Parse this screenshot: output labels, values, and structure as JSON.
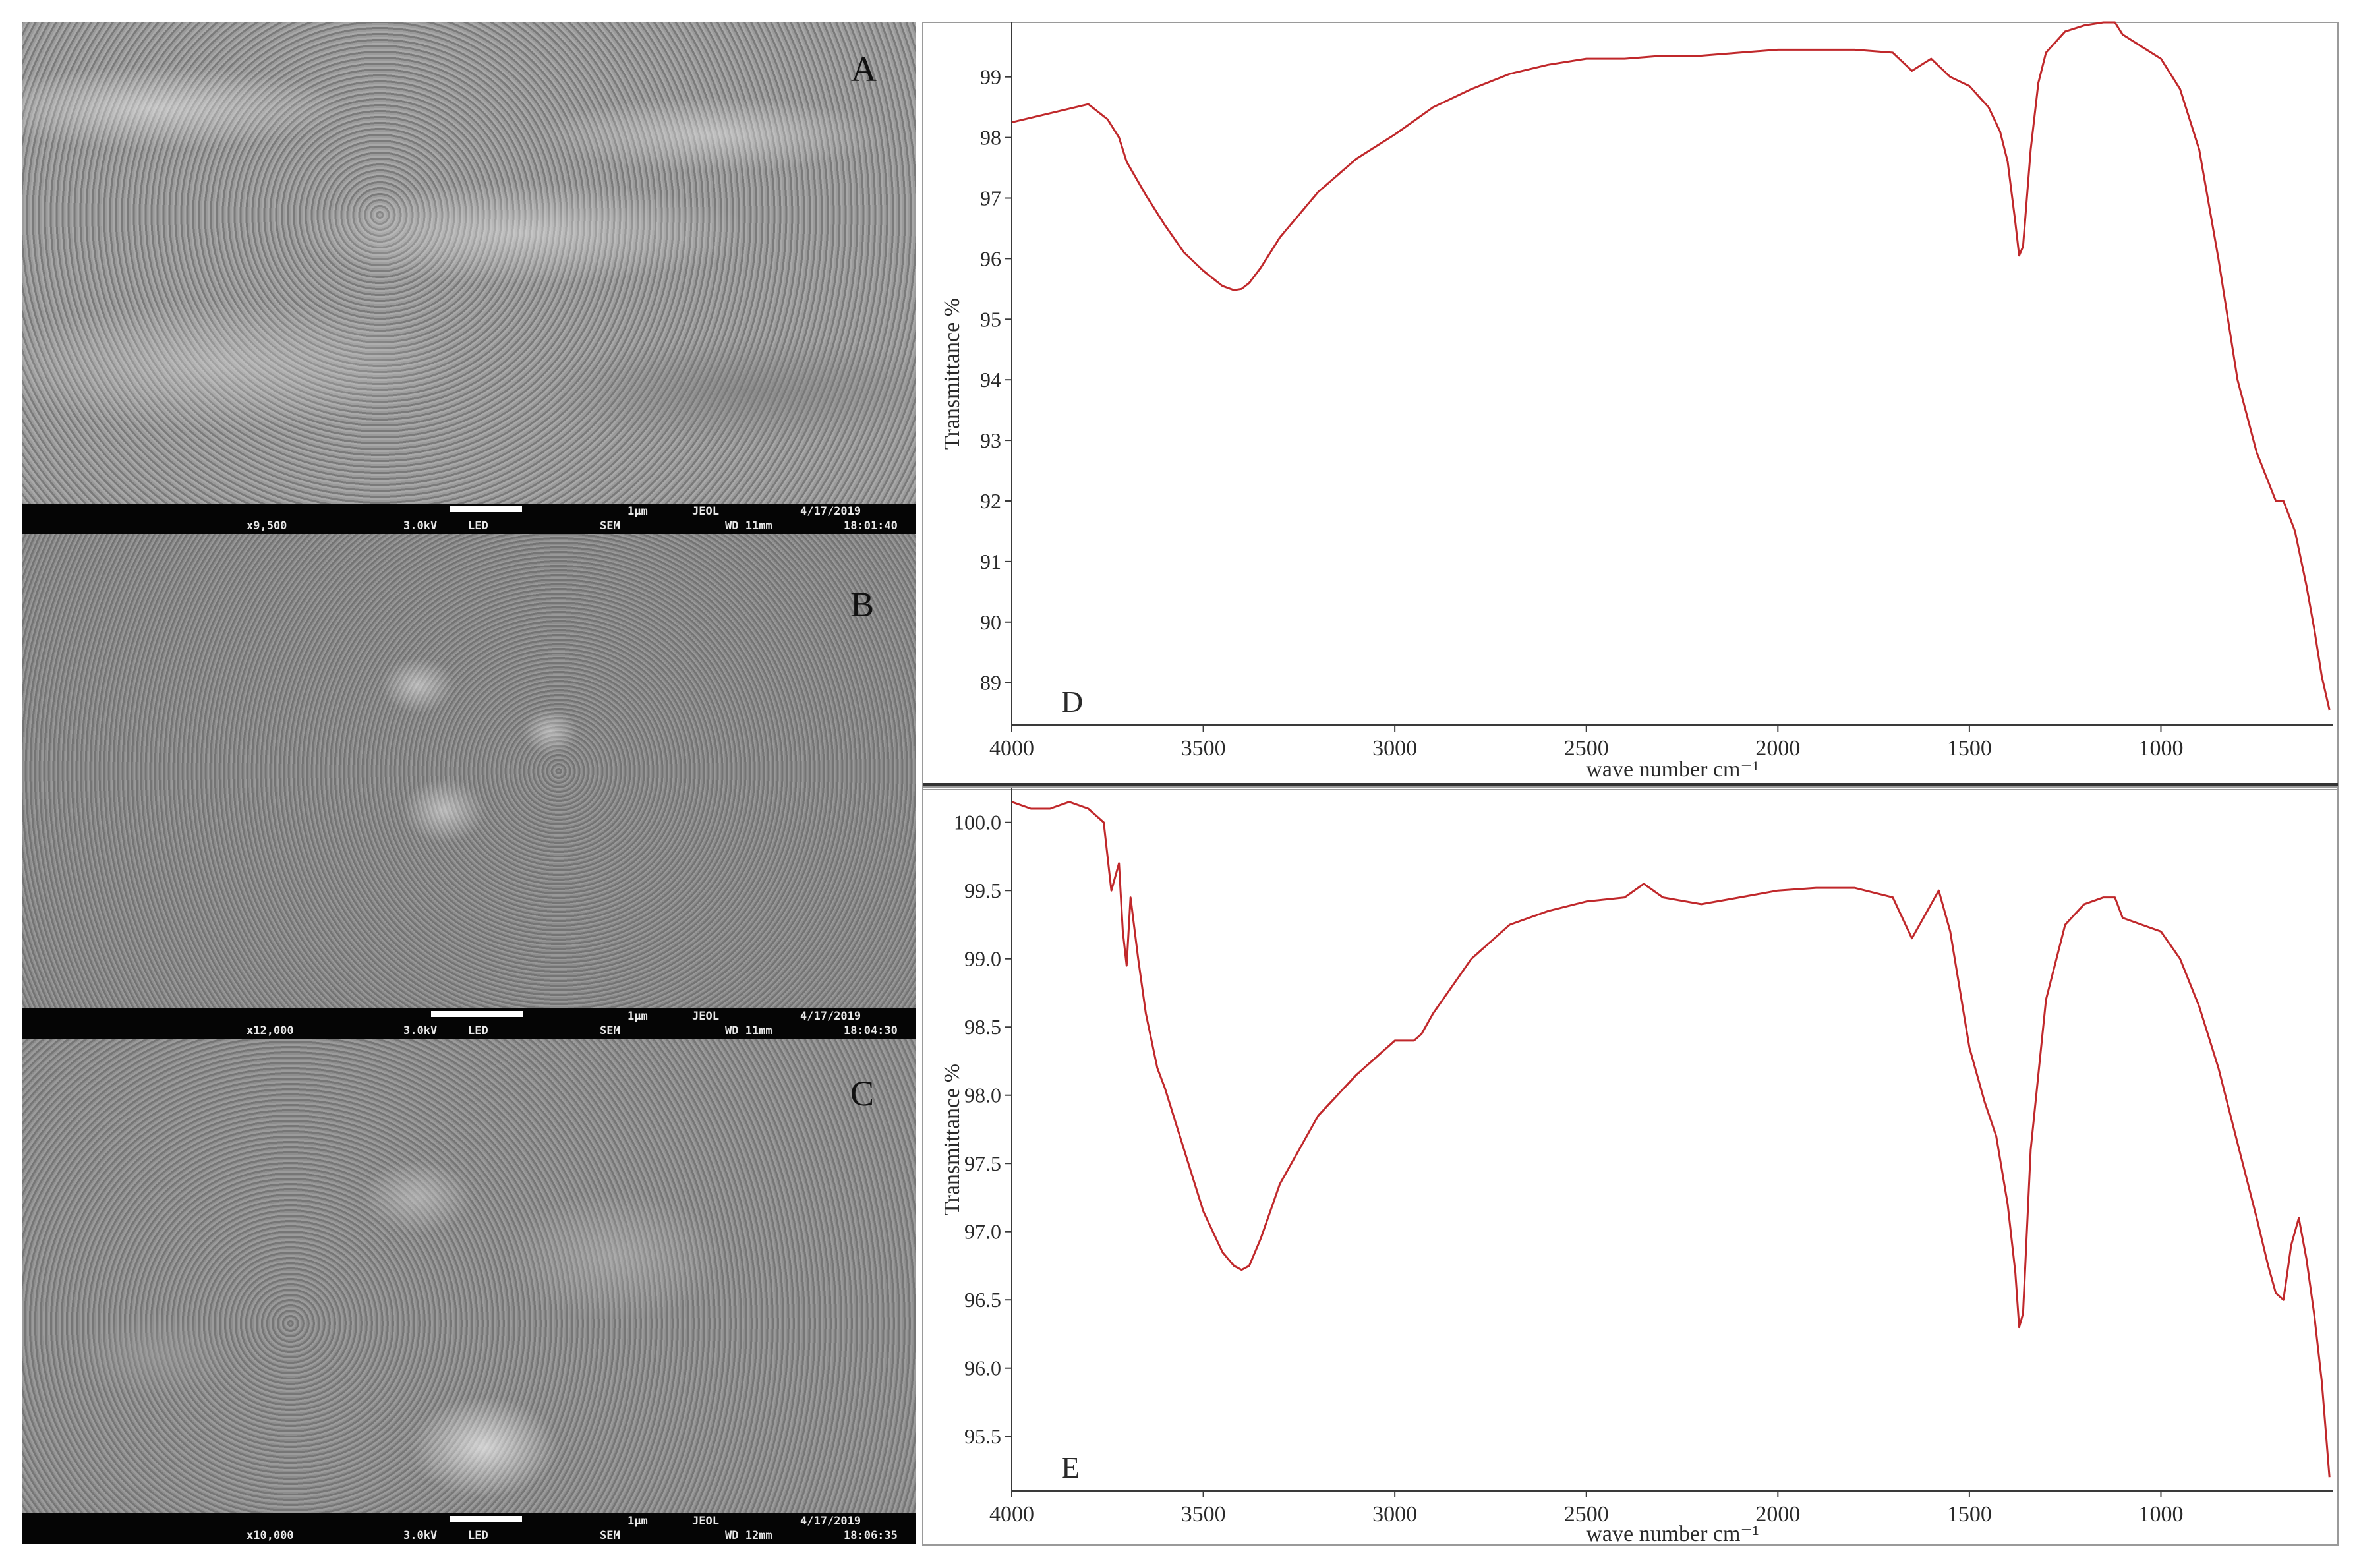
{
  "sem_panels": [
    {
      "letter": "A",
      "magnification": "x9,500",
      "voltage": "3.0kV",
      "detector": "LED",
      "mode": "SEM",
      "scale": "1μm",
      "maker": "JEOL",
      "wd": "WD 11mm",
      "date": "4/17/2019",
      "time": "18:01:40"
    },
    {
      "letter": "B",
      "magnification": "x12,000",
      "voltage": "3.0kV",
      "detector": "LED",
      "mode": "SEM",
      "scale": "1μm",
      "maker": "JEOL",
      "wd": "WD 11mm",
      "date": "4/17/2019",
      "time": "18:04:30"
    },
    {
      "letter": "C",
      "magnification": "x10,000",
      "voltage": "3.0kV",
      "detector": "LED",
      "mode": "SEM",
      "scale": "1μm",
      "maker": "JEOL",
      "wd": "WD 12mm",
      "date": "4/17/2019",
      "time": "18:06:35"
    }
  ],
  "chart_data": [
    {
      "type": "line",
      "panel_label": "D",
      "xlabel": "wave number cm⁻¹",
      "ylabel": "Transmittance %",
      "xlim": [
        4000,
        550
      ],
      "ylim": [
        88.3,
        99.9
      ],
      "x_reversed": true,
      "xticks": [
        4000,
        3500,
        3000,
        2500,
        2000,
        1500,
        1000
      ],
      "yticks": [
        89,
        90,
        91,
        92,
        93,
        94,
        95,
        96,
        97,
        98,
        99
      ],
      "color": "#c0282b",
      "grid": false,
      "series": [
        {
          "x": [
            4000,
            3900,
            3800,
            3750,
            3720,
            3700,
            3650,
            3600,
            3550,
            3500,
            3450,
            3420,
            3400,
            3380,
            3350,
            3300,
            3200,
            3100,
            3000,
            2900,
            2800,
            2700,
            2600,
            2500,
            2400,
            2300,
            2200,
            2100,
            2000,
            1900,
            1800,
            1700,
            1650,
            1600,
            1550,
            1500,
            1450,
            1420,
            1400,
            1380,
            1370,
            1360,
            1340,
            1320,
            1300,
            1250,
            1200,
            1150,
            1120,
            1100,
            1050,
            1000,
            950,
            900,
            850,
            800,
            750,
            700,
            680,
            650,
            620,
            600,
            580,
            560
          ],
          "y": [
            98.25,
            98.4,
            98.55,
            98.3,
            98.0,
            97.6,
            97.05,
            96.55,
            96.1,
            95.8,
            95.55,
            95.48,
            95.5,
            95.6,
            95.85,
            96.35,
            97.1,
            97.65,
            98.05,
            98.5,
            98.8,
            99.05,
            99.2,
            99.3,
            99.3,
            99.35,
            99.35,
            99.4,
            99.45,
            99.45,
            99.45,
            99.4,
            99.1,
            99.3,
            99.0,
            98.85,
            98.5,
            98.1,
            97.6,
            96.6,
            96.05,
            96.2,
            97.8,
            98.9,
            99.4,
            99.75,
            99.85,
            99.9,
            99.9,
            99.7,
            99.5,
            99.3,
            98.8,
            97.8,
            96.0,
            94.0,
            92.8,
            92.0,
            92.0,
            91.5,
            90.6,
            89.9,
            89.1,
            88.55
          ]
        }
      ]
    },
    {
      "type": "line",
      "panel_label": "E",
      "xlabel": "wave number cm⁻¹",
      "ylabel": "Transmittance %",
      "xlim": [
        4000,
        550
      ],
      "ylim": [
        95.1,
        100.25
      ],
      "x_reversed": true,
      "xticks": [
        4000,
        3500,
        3000,
        2500,
        2000,
        1500,
        1000
      ],
      "yticks": [
        95.5,
        96.0,
        96.5,
        97.0,
        97.5,
        98.0,
        98.5,
        99.0,
        99.5,
        100.0
      ],
      "color": "#c0282b",
      "grid": false,
      "series": [
        {
          "x": [
            4000,
            3950,
            3900,
            3850,
            3800,
            3760,
            3740,
            3720,
            3710,
            3700,
            3690,
            3670,
            3650,
            3620,
            3600,
            3550,
            3500,
            3450,
            3420,
            3400,
            3380,
            3350,
            3300,
            3200,
            3100,
            3000,
            2950,
            2930,
            2900,
            2800,
            2700,
            2600,
            2500,
            2400,
            2350,
            2300,
            2200,
            2100,
            2000,
            1900,
            1800,
            1700,
            1650,
            1620,
            1580,
            1550,
            1500,
            1460,
            1430,
            1400,
            1380,
            1370,
            1360,
            1340,
            1300,
            1250,
            1200,
            1150,
            1120,
            1100,
            1050,
            1000,
            950,
            900,
            850,
            800,
            750,
            720,
            700,
            680,
            660,
            640,
            620,
            600,
            580,
            560
          ],
          "y": [
            100.15,
            100.1,
            100.1,
            100.15,
            100.1,
            100.0,
            99.5,
            99.7,
            99.2,
            98.95,
            99.45,
            99.0,
            98.6,
            98.2,
            98.05,
            97.6,
            97.15,
            96.85,
            96.75,
            96.72,
            96.75,
            96.95,
            97.35,
            97.85,
            98.15,
            98.4,
            98.4,
            98.45,
            98.6,
            99.0,
            99.25,
            99.35,
            99.42,
            99.45,
            99.55,
            99.45,
            99.4,
            99.45,
            99.5,
            99.52,
            99.52,
            99.45,
            99.15,
            99.3,
            99.5,
            99.2,
            98.35,
            97.95,
            97.7,
            97.2,
            96.7,
            96.3,
            96.4,
            97.6,
            98.7,
            99.25,
            99.4,
            99.45,
            99.45,
            99.3,
            99.25,
            99.2,
            99.0,
            98.65,
            98.2,
            97.65,
            97.1,
            96.75,
            96.55,
            96.5,
            96.9,
            97.1,
            96.8,
            96.4,
            95.9,
            95.2
          ]
        }
      ]
    }
  ]
}
